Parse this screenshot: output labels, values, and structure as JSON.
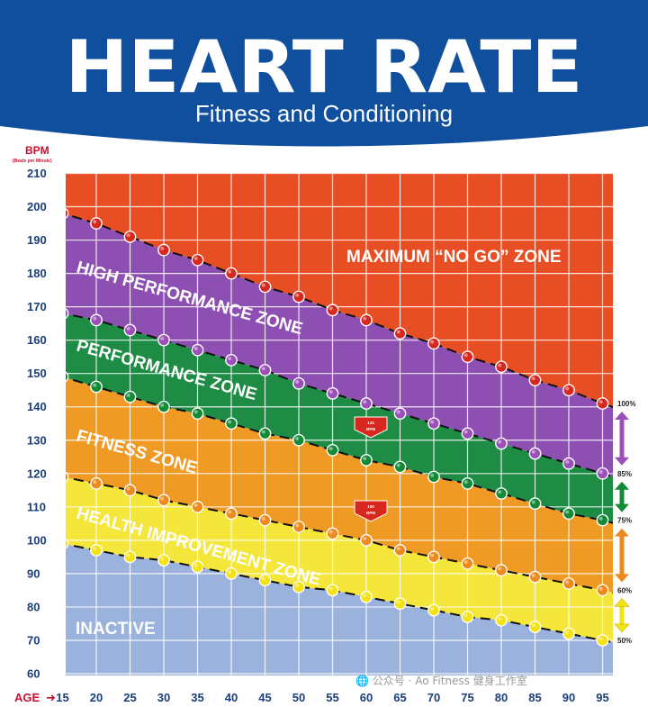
{
  "watermark": "🌐 公众号 · Ao Fitness 健身工作室",
  "chart_data": {
    "type": "line",
    "title": "HEART RATE",
    "subtitle": "Fitness and Conditioning",
    "ylabel": "BPM",
    "ylabel_sub": "(Beats per Minute)",
    "xlabel": "AGE",
    "xlim": [
      15,
      95
    ],
    "ylim": [
      60,
      210
    ],
    "x": [
      15,
      20,
      25,
      30,
      35,
      40,
      45,
      50,
      55,
      60,
      65,
      70,
      75,
      80,
      85,
      90,
      95
    ],
    "yticks": [
      60,
      70,
      80,
      90,
      100,
      110,
      120,
      130,
      140,
      150,
      160,
      170,
      180,
      190,
      200,
      210
    ],
    "series": [
      {
        "name": "100%",
        "color": "#d8271f",
        "values": [
          198,
          195,
          191,
          187,
          184,
          180,
          176,
          173,
          169,
          166,
          162,
          159,
          155,
          152,
          148,
          145,
          141
        ]
      },
      {
        "name": "85%",
        "color": "#9b4fb8",
        "values": [
          168,
          166,
          163,
          160,
          157,
          154,
          151,
          147,
          144,
          141,
          138,
          135,
          132,
          129,
          126,
          123,
          120
        ]
      },
      {
        "name": "75%",
        "color": "#138a36",
        "values": [
          149,
          146,
          143,
          140,
          138,
          135,
          132,
          130,
          127,
          124,
          122,
          119,
          117,
          114,
          111,
          108,
          106
        ]
      },
      {
        "name": "60%",
        "color": "#ee8a1c",
        "values": [
          119,
          117,
          115,
          112,
          110,
          108,
          106,
          104,
          102,
          100,
          97,
          95,
          93,
          91,
          89,
          87,
          85
        ]
      },
      {
        "name": "50%",
        "color": "#f5e214",
        "values": [
          99,
          97,
          95,
          94,
          92,
          90,
          88,
          86,
          85,
          83,
          81,
          79,
          77,
          76,
          74,
          72,
          70
        ]
      }
    ],
    "zones": [
      {
        "name": "MAXIMUM “NO GO” ZONE",
        "color": "#e84e23"
      },
      {
        "name": "HIGH PERFORMANCE ZONE",
        "color": "#8e4fb3"
      },
      {
        "name": "PERFORMANCE ZONE",
        "color": "#1e8c45"
      },
      {
        "name": "FITNESS ZONE",
        "color": "#f09a26"
      },
      {
        "name": "HEALTH IMPROVEMENT ZONE",
        "color": "#f4e63a"
      },
      {
        "name": "INACTIVE",
        "color": "#9bb3dc"
      }
    ],
    "callouts": [
      {
        "age": 60,
        "value": "120",
        "unit": "BPM"
      },
      {
        "age": 60,
        "value": "100",
        "unit": "BPM"
      }
    ],
    "percent_labels": [
      "100%",
      "85%",
      "75%",
      "60%",
      "50%"
    ]
  }
}
